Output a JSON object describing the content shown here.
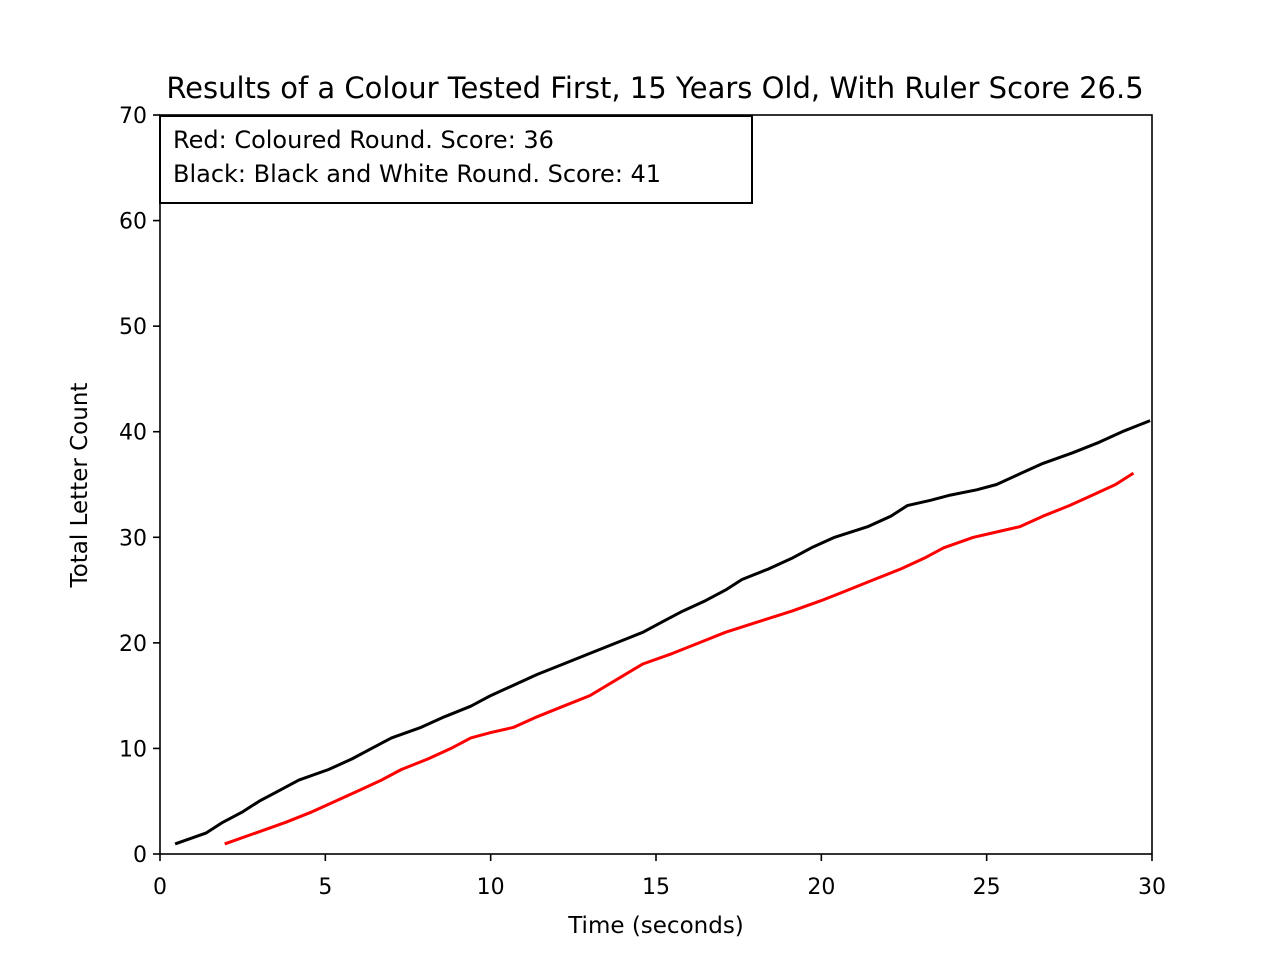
{
  "chart_data": {
    "type": "line",
    "title": "Results of a Colour Tested First, 15 Years Old,  With Ruler Score 26.5",
    "xlabel": "Time (seconds)",
    "ylabel": "Total Letter Count",
    "xlim": [
      0,
      30
    ],
    "ylim": [
      0,
      70
    ],
    "xticks": [
      0,
      5,
      10,
      15,
      20,
      25,
      30
    ],
    "yticks": [
      0,
      10,
      20,
      30,
      40,
      50,
      60,
      70
    ],
    "grid": false,
    "legend_placement": "top-left",
    "legend_lines": [
      "Red: Coloured Round. Score: 36",
      "Black: Black and White Round. Score: 41"
    ],
    "series": [
      {
        "color": "#ff0000",
        "x": [
          2.0,
          2.9,
          3.8,
          4.6,
          5.3,
          6.0,
          6.7,
          7.3,
          8.1,
          8.8,
          9.4,
          10.0,
          10.7,
          11.4,
          12.2,
          13.0,
          13.8,
          14.6,
          15.5,
          16.3,
          17.1,
          18.1,
          19.1,
          20.0,
          20.8,
          21.6,
          22.4,
          23.1,
          23.7,
          24.6,
          25.3,
          26.0,
          26.7,
          27.5,
          28.2,
          28.9,
          29.4
        ],
        "y": [
          1,
          2,
          3,
          4,
          5,
          6,
          7,
          8,
          9,
          10,
          11,
          11.5,
          12,
          13,
          14,
          15,
          16.5,
          18,
          19,
          20,
          21,
          22,
          23,
          24,
          25,
          26,
          27,
          28,
          29,
          30,
          30.5,
          31,
          32,
          33,
          34,
          35,
          36
        ]
      },
      {
        "color": "#000000",
        "x": [
          0.5,
          1.4,
          1.9,
          2.5,
          3.0,
          3.6,
          4.2,
          5.1,
          5.8,
          6.4,
          7.0,
          7.9,
          8.6,
          9.4,
          10.0,
          10.7,
          11.4,
          12.2,
          13.0,
          13.8,
          14.6,
          15.2,
          15.8,
          16.5,
          17.1,
          17.6,
          18.4,
          19.1,
          19.7,
          20.4,
          21.4,
          22.1,
          22.6,
          23.3,
          23.9,
          24.7,
          25.3,
          26.0,
          26.7,
          27.6,
          28.4,
          29.1,
          29.9
        ],
        "y": [
          1,
          2,
          3,
          4,
          5,
          6,
          7,
          8,
          9,
          10,
          11,
          12,
          13,
          14,
          15,
          16,
          17,
          18,
          19,
          20,
          21,
          22,
          23,
          24,
          25,
          26,
          27,
          28,
          29,
          30,
          31,
          32,
          33,
          33.5,
          34,
          34.5,
          35,
          36,
          37,
          38,
          39,
          40,
          41
        ]
      }
    ]
  }
}
